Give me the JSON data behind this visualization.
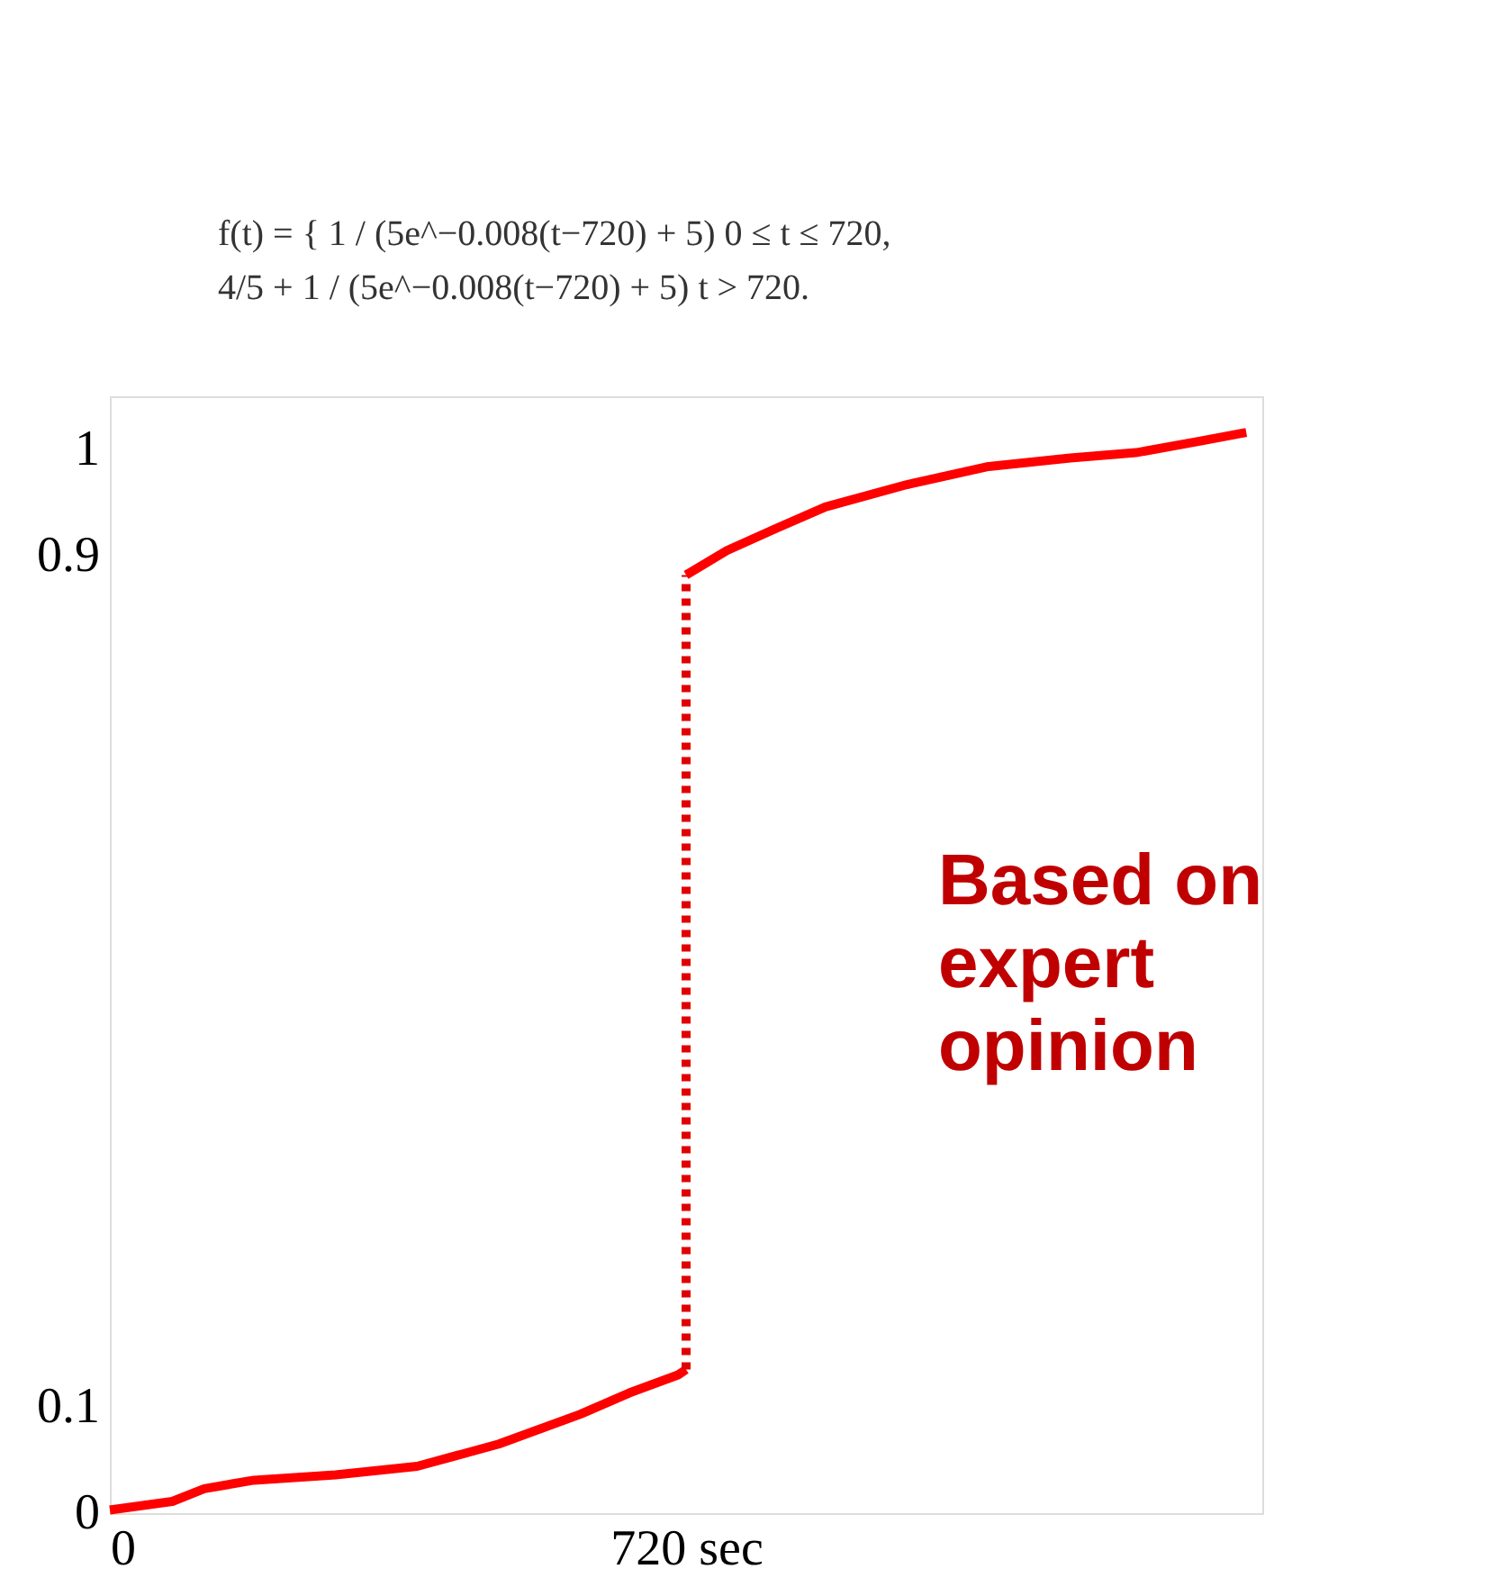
{
  "chart_data": {
    "type": "line",
    "xlim": [
      0,
      1440
    ],
    "ylim": [
      0,
      1.05
    ],
    "xticks": [
      {
        "value": 0,
        "label": "0"
      },
      {
        "value": 720,
        "label": "720 sec"
      }
    ],
    "yticks": [
      0,
      0.1,
      0.9,
      1
    ],
    "grid": false,
    "series": [
      {
        "color": "#ff0000",
        "line_style": "solid",
        "x": [
          0,
          78,
          118,
          180,
          282,
          384,
          486,
          588,
          649,
          710,
          720
        ],
        "values": [
          0.003,
          0.011,
          0.023,
          0.031,
          0.036,
          0.044,
          0.065,
          0.093,
          0.113,
          0.13,
          0.135
        ]
      },
      {
        "color": "#e00000",
        "line_style": "dotted",
        "x": [
          720,
          720
        ],
        "values": [
          0.135,
          0.882
        ]
      },
      {
        "color": "#ff0000",
        "line_style": "solid",
        "x": [
          720,
          771,
          833,
          894,
          996,
          1098,
          1200,
          1282,
          1363,
          1420
        ],
        "values": [
          0.882,
          0.905,
          0.926,
          0.946,
          0.967,
          0.984,
          0.992,
          0.997,
          1.008,
          1.016
        ]
      }
    ],
    "annotations": [
      "f(t) = {  1 / (5e^−0.008(t−720) + 5)          0 ≤ t ≤ 720,",
      "           4/5 + 1 / (5e^−0.008(t−720) + 5)    t > 720.",
      "Based on\nexpert\nopinion"
    ]
  }
}
